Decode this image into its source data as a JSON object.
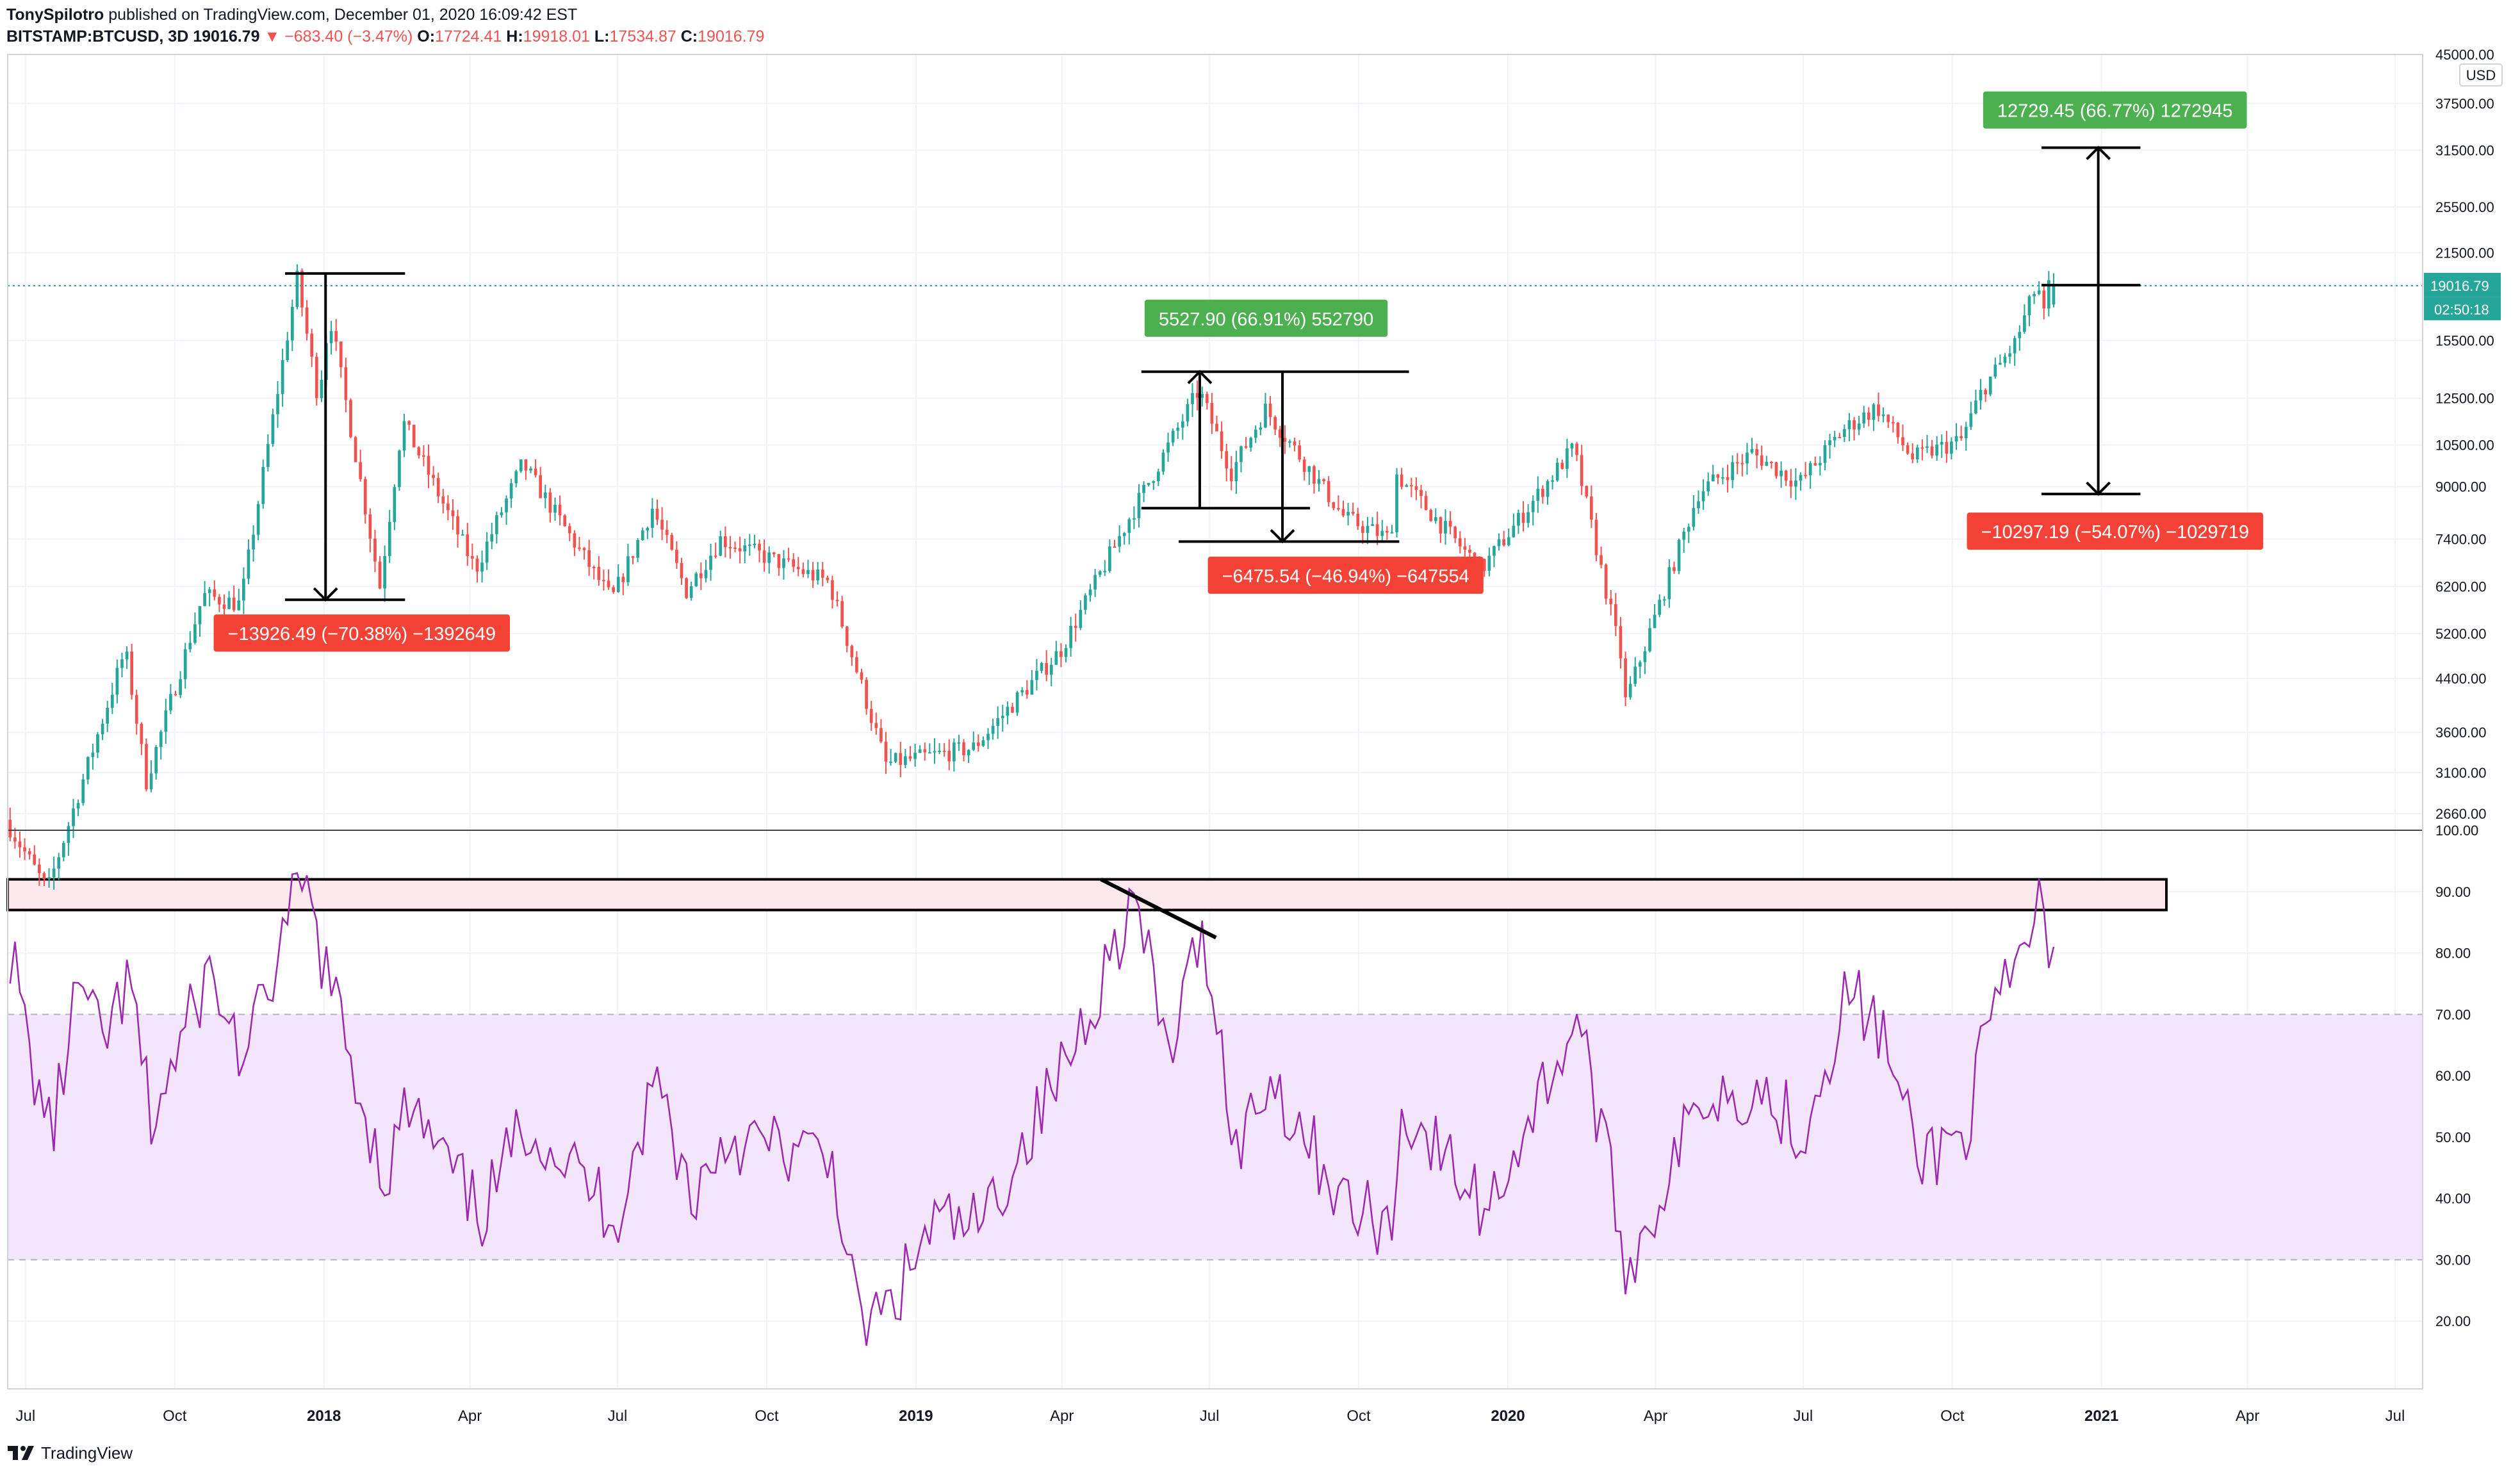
{
  "header": {
    "author": "TonySpilotro",
    "published": " published on TradingView.com, December 01, 2020 16:09:42 EST",
    "symbol": "BITSTAMP:BTCUSD, 3D",
    "price": "19016.79",
    "change": "−683.40 (−3.47%)",
    "o_label": "O:",
    "o_val": "17724.41",
    "h_label": "H:",
    "h_val": "19918.01",
    "l_label": "L:",
    "l_val": "17534.87",
    "c_label": "C:",
    "c_val": "19016.79"
  },
  "colors": {
    "up": "#26a69a",
    "down": "#ef5350",
    "rsi": "#9c27b0",
    "rsi_band": "#f3e5fc",
    "overbought_box": "#fce9ee",
    "label_green": "#4caf50",
    "label_red": "#f44336"
  },
  "price_axis": {
    "currency": "USD",
    "scale": "log",
    "ticks": [
      "45000.00",
      "37500.00",
      "31500.00",
      "25500.00",
      "21500.00",
      "15500.00",
      "12500.00",
      "10500.00",
      "9000.00",
      "7400.00",
      "6200.00",
      "5200.00",
      "4400.00",
      "3600.00",
      "3100.00",
      "2660.00"
    ],
    "last_price": "19016.79",
    "countdown": "02:50:18"
  },
  "rsi_axis": {
    "ticks": [
      "100.00",
      "90.00",
      "80.00",
      "70.00",
      "60.00",
      "50.00",
      "40.00",
      "30.00",
      "20.00"
    ]
  },
  "time_axis": {
    "labels": [
      "Jul",
      "Oct",
      "2018",
      "Apr",
      "Jul",
      "Oct",
      "2019",
      "Apr",
      "Jul",
      "Oct",
      "2020",
      "Apr",
      "Jul",
      "Oct",
      "2021",
      "Apr",
      "Jul"
    ]
  },
  "annotations": [
    {
      "text": "−13926.49 (−70.38%) −1392649",
      "kind": "down"
    },
    {
      "text": "5527.90 (66.91%) 552790",
      "kind": "up"
    },
    {
      "text": "−6475.54 (−46.94%) −647554",
      "kind": "down"
    },
    {
      "text": "12729.45 (66.77%) 1272945",
      "kind": "up"
    },
    {
      "text": "−10297.19 (−54.07%) −1029719",
      "kind": "down"
    }
  ],
  "chart_data": [
    {
      "type": "candlestick",
      "title": "BITSTAMP:BTCUSD, 3D",
      "y_scale": "log",
      "ylim": [
        2500,
        45000
      ],
      "x_range": [
        "2017-06-20",
        "2021-07-15"
      ],
      "anchors": [
        [
          "2017-06-20",
          2600
        ],
        [
          "2017-07-16",
          2000
        ],
        [
          "2017-08-01",
          2700
        ],
        [
          "2017-09-02",
          4900
        ],
        [
          "2017-09-15",
          3000
        ],
        [
          "2017-10-20",
          6000
        ],
        [
          "2017-11-12",
          5800
        ],
        [
          "2017-12-17",
          19500
        ],
        [
          "2017-12-30",
          12500
        ],
        [
          "2018-01-06",
          17100
        ],
        [
          "2018-02-06",
          6200
        ],
        [
          "2018-02-20",
          11500
        ],
        [
          "2018-04-06",
          6600
        ],
        [
          "2018-05-05",
          9800
        ],
        [
          "2018-06-29",
          5900
        ],
        [
          "2018-07-24",
          8300
        ],
        [
          "2018-08-14",
          6100
        ],
        [
          "2018-09-04",
          7400
        ],
        [
          "2018-11-10",
          6300
        ],
        [
          "2018-12-15",
          3200
        ],
        [
          "2019-02-07",
          3400
        ],
        [
          "2019-04-02",
          4900
        ],
        [
          "2019-05-14",
          8000
        ],
        [
          "2019-06-26",
          12900
        ],
        [
          "2019-07-16",
          9500
        ],
        [
          "2019-08-06",
          12000
        ],
        [
          "2019-09-24",
          8000
        ],
        [
          "2019-10-22",
          7400
        ],
        [
          "2019-10-26",
          9400
        ],
        [
          "2019-12-17",
          6600
        ],
        [
          "2020-02-12",
          10400
        ],
        [
          "2020-03-12",
          4800
        ],
        [
          "2020-03-13",
          3900
        ],
        [
          "2020-04-29",
          8800
        ],
        [
          "2020-06-01",
          10200
        ],
        [
          "2020-06-30",
          9100
        ],
        [
          "2020-07-27",
          11100
        ],
        [
          "2020-08-17",
          12100
        ],
        [
          "2020-09-08",
          10000
        ],
        [
          "2020-10-08",
          10700
        ],
        [
          "2020-10-21",
          12900
        ],
        [
          "2020-11-10",
          15300
        ],
        [
          "2020-11-24",
          19200
        ],
        [
          "2020-11-28",
          17000
        ],
        [
          "2020-12-01",
          19016.79
        ]
      ],
      "last_bar": {
        "open": 17724.41,
        "high": 19918.01,
        "low": 17534.87,
        "close": 19016.79
      },
      "measures": [
        {
          "from": 19900,
          "to": 5900,
          "change": -13926.49,
          "pct": -70.38
        },
        {
          "from": 8300,
          "to": 13800,
          "change": 5527.9,
          "pct": 66.91
        },
        {
          "from": 13800,
          "to": 7330,
          "change": -6475.54,
          "pct": -46.94
        },
        {
          "from": 19050,
          "to": 31800,
          "change": 12729.45,
          "pct": 66.77
        },
        {
          "from": 19050,
          "to": 8750,
          "change": -10297.19,
          "pct": -54.07
        }
      ]
    },
    {
      "type": "line",
      "title": "RSI",
      "ylim": [
        10,
        100
      ],
      "bands": {
        "upper": 70,
        "lower": 30
      },
      "overbought_zone": [
        87,
        92
      ],
      "points": [
        [
          "2017-06-20",
          81
        ],
        [
          "2017-07-03",
          62
        ],
        [
          "2017-07-16",
          50
        ],
        [
          "2017-08-01",
          75
        ],
        [
          "2017-08-15",
          65
        ],
        [
          "2017-09-02",
          75
        ],
        [
          "2017-09-15",
          52
        ],
        [
          "2017-10-20",
          77
        ],
        [
          "2017-11-12",
          62
        ],
        [
          "2017-12-17",
          92
        ],
        [
          "2018-01-06",
          72
        ],
        [
          "2018-02-06",
          43
        ],
        [
          "2018-02-20",
          55
        ],
        [
          "2018-04-06",
          37
        ],
        [
          "2018-05-05",
          53
        ],
        [
          "2018-06-29",
          37
        ],
        [
          "2018-07-24",
          60
        ],
        [
          "2018-08-14",
          40
        ],
        [
          "2018-09-04",
          50
        ],
        [
          "2018-11-10",
          46
        ],
        [
          "2018-11-25",
          19
        ],
        [
          "2018-12-15",
          22
        ],
        [
          "2019-01-10",
          36
        ],
        [
          "2019-02-07",
          35
        ],
        [
          "2019-04-02",
          62
        ],
        [
          "2019-05-14",
          89
        ],
        [
          "2019-06-04",
          63
        ],
        [
          "2019-06-26",
          84
        ],
        [
          "2019-07-16",
          48
        ],
        [
          "2019-08-06",
          60
        ],
        [
          "2019-09-24",
          38
        ],
        [
          "2019-10-22",
          36
        ],
        [
          "2019-10-26",
          55
        ],
        [
          "2019-12-17",
          38
        ],
        [
          "2020-02-12",
          70
        ],
        [
          "2020-03-12",
          30
        ],
        [
          "2020-03-13",
          28
        ],
        [
          "2020-04-29",
          57
        ],
        [
          "2020-06-01",
          58
        ],
        [
          "2020-06-30",
          51
        ],
        [
          "2020-07-27",
          74
        ],
        [
          "2020-08-17",
          67
        ],
        [
          "2020-09-08",
          46
        ],
        [
          "2020-10-08",
          51
        ],
        [
          "2020-10-21",
          67
        ],
        [
          "2020-11-10",
          78
        ],
        [
          "2020-11-24",
          90
        ],
        [
          "2020-11-28",
          77
        ],
        [
          "2020-12-01",
          81
        ]
      ]
    }
  ]
}
